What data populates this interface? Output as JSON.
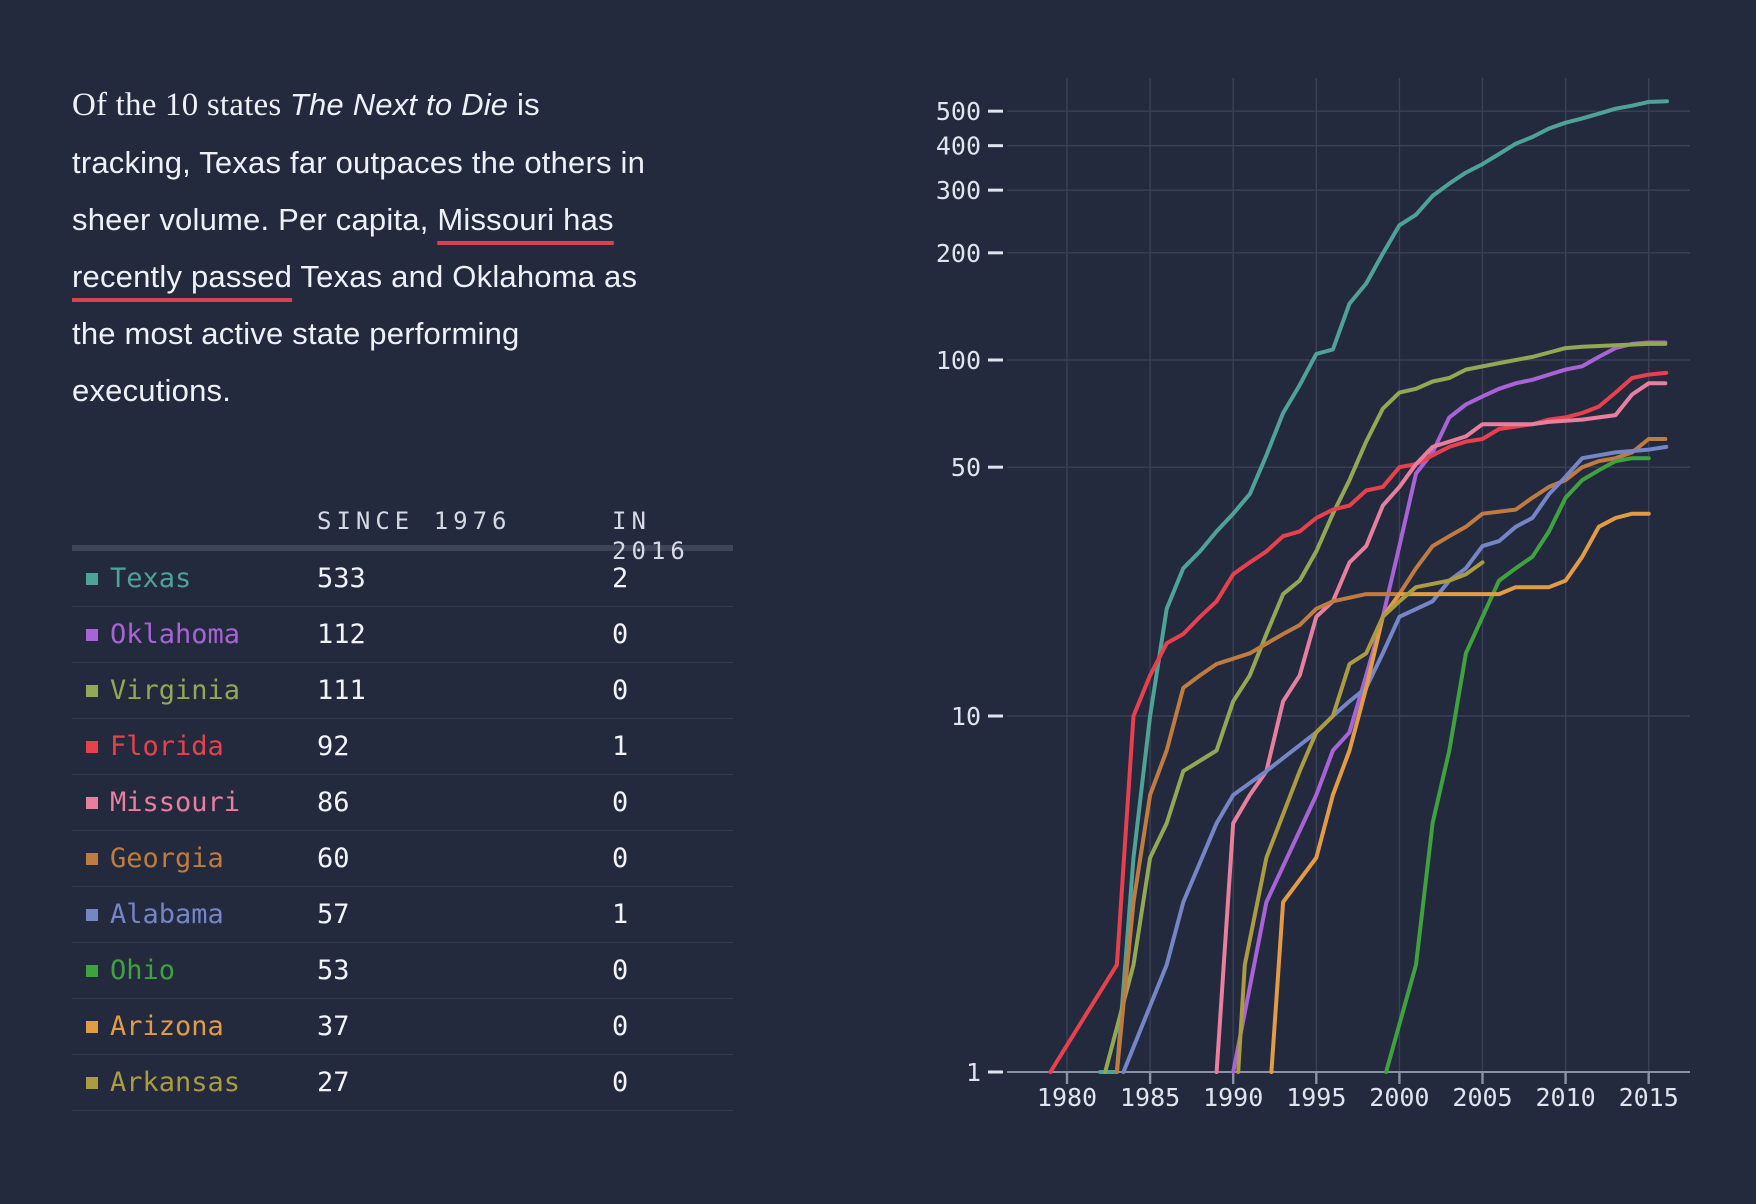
{
  "colors": {
    "background": "#232A3E",
    "text": "#EEF1F7",
    "link_underline": "#D8414E",
    "grid": "#3A4156",
    "axis": "#8A92A8",
    "tick_label": "#E0E4EE",
    "table_header_rule": "#3E4557",
    "table_row_border": "#333A4E"
  },
  "intro": {
    "lines": [
      {
        "segments": [
          {
            "text": "Of the 10 states ",
            "style": "serif"
          },
          {
            "text": "The Next to Die",
            "style": "italic"
          },
          {
            "text": " is",
            "style": "plain"
          }
        ]
      },
      {
        "segments": [
          {
            "text": "tracking, Texas far outpaces the others in",
            "style": "plain"
          }
        ]
      },
      {
        "segments": [
          {
            "text": "sheer volume. Per capita, ",
            "style": "plain"
          },
          {
            "text": "Missouri has",
            "style": "link"
          }
        ]
      },
      {
        "segments": [
          {
            "text": "recently passed",
            "style": "link"
          },
          {
            "text": " Texas and Oklahoma as",
            "style": "plain"
          }
        ]
      },
      {
        "segments": [
          {
            "text": "the most active state performing",
            "style": "plain"
          }
        ]
      },
      {
        "segments": [
          {
            "text": "executions.",
            "style": "plain"
          }
        ]
      }
    ]
  },
  "table": {
    "headers": [
      "SINCE 1976",
      "IN 2016"
    ],
    "rows": [
      {
        "state": "Texas",
        "color": "#4FA396",
        "since_1976": "533",
        "in_2016": "2"
      },
      {
        "state": "Oklahoma",
        "color": "#A863D6",
        "since_1976": "112",
        "in_2016": "0"
      },
      {
        "state": "Virginia",
        "color": "#93A853",
        "since_1976": "111",
        "in_2016": "0"
      },
      {
        "state": "Florida",
        "color": "#E8414D",
        "since_1976": "92",
        "in_2016": "1"
      },
      {
        "state": "Missouri",
        "color": "#E87F9F",
        "since_1976": "86",
        "in_2016": "0"
      },
      {
        "state": "Georgia",
        "color": "#C07B41",
        "since_1976": "60",
        "in_2016": "0"
      },
      {
        "state": "Alabama",
        "color": "#7585C6",
        "since_1976": "57",
        "in_2016": "1"
      },
      {
        "state": "Ohio",
        "color": "#3FA23F",
        "since_1976": "53",
        "in_2016": "0"
      },
      {
        "state": "Arizona",
        "color": "#E39C45",
        "since_1976": "37",
        "in_2016": "0"
      },
      {
        "state": "Arkansas",
        "color": "#AB9B41",
        "since_1976": "27",
        "in_2016": "0"
      }
    ]
  },
  "chart_data": {
    "type": "line",
    "title": "Cumulative executions since 1976, by state",
    "y_scale": "log",
    "x_ticks": [
      1980,
      1985,
      1990,
      1995,
      2000,
      2005,
      2010,
      2015
    ],
    "y_ticks": [
      1,
      10,
      50,
      100,
      200,
      300,
      400,
      500
    ],
    "x_domain": [
      1976.4,
      2017.5
    ],
    "y_domain": [
      1,
      620
    ],
    "grid": true,
    "legend_position": "none",
    "series": [
      {
        "name": "Texas",
        "color": "#4FA396",
        "points": [
          [
            1982,
            1
          ],
          [
            1983,
            1
          ],
          [
            1984,
            4
          ],
          [
            1985,
            10
          ],
          [
            1986,
            20
          ],
          [
            1987,
            26
          ],
          [
            1988,
            29
          ],
          [
            1989,
            33
          ],
          [
            1990,
            37
          ],
          [
            1991,
            42
          ],
          [
            1992,
            54
          ],
          [
            1993,
            71
          ],
          [
            1994,
            85
          ],
          [
            1995,
            104
          ],
          [
            1996,
            107
          ],
          [
            1997,
            144
          ],
          [
            1998,
            164
          ],
          [
            1999,
            199
          ],
          [
            2000,
            239
          ],
          [
            2001,
            256
          ],
          [
            2002,
            289
          ],
          [
            2003,
            313
          ],
          [
            2004,
            336
          ],
          [
            2005,
            355
          ],
          [
            2006,
            379
          ],
          [
            2007,
            405
          ],
          [
            2008,
            423
          ],
          [
            2009,
            447
          ],
          [
            2010,
            464
          ],
          [
            2011,
            477
          ],
          [
            2012,
            492
          ],
          [
            2013,
            508
          ],
          [
            2014,
            518
          ],
          [
            2015,
            531
          ],
          [
            2016.1,
            533
          ]
        ]
      },
      {
        "name": "Oklahoma",
        "color": "#A863D6",
        "points": [
          [
            1990,
            1
          ],
          [
            1992,
            3
          ],
          [
            1995,
            6
          ],
          [
            1996,
            8
          ],
          [
            1997,
            9
          ],
          [
            1998,
            13
          ],
          [
            1999,
            19
          ],
          [
            2000,
            30
          ],
          [
            2001,
            48
          ],
          [
            2002,
            55
          ],
          [
            2003,
            69
          ],
          [
            2004,
            75
          ],
          [
            2005,
            79
          ],
          [
            2006,
            83
          ],
          [
            2007,
            86
          ],
          [
            2008,
            88
          ],
          [
            2009,
            91
          ],
          [
            2010,
            94
          ],
          [
            2011,
            96
          ],
          [
            2012,
            102
          ],
          [
            2013,
            108
          ],
          [
            2014,
            111
          ],
          [
            2015,
            112
          ],
          [
            2016,
            112
          ]
        ]
      },
      {
        "name": "Virginia",
        "color": "#93A853",
        "points": [
          [
            1982.3,
            1
          ],
          [
            1984,
            2
          ],
          [
            1985,
            4
          ],
          [
            1986,
            5
          ],
          [
            1987,
            7
          ],
          [
            1989,
            8
          ],
          [
            1990,
            11
          ],
          [
            1991,
            13
          ],
          [
            1992,
            17
          ],
          [
            1993,
            22
          ],
          [
            1994,
            24
          ],
          [
            1995,
            29
          ],
          [
            1996,
            37
          ],
          [
            1997,
            46
          ],
          [
            1998,
            59
          ],
          [
            1999,
            73
          ],
          [
            2000,
            81
          ],
          [
            2001,
            83
          ],
          [
            2002,
            87
          ],
          [
            2003,
            89
          ],
          [
            2004,
            94
          ],
          [
            2006,
            98
          ],
          [
            2008,
            102
          ],
          [
            2009,
            105
          ],
          [
            2010,
            108
          ],
          [
            2011,
            109
          ],
          [
            2013,
            110
          ],
          [
            2015,
            111
          ],
          [
            2016,
            111
          ]
        ]
      },
      {
        "name": "Florida",
        "color": "#E8414D",
        "points": [
          [
            1979,
            1
          ],
          [
            1983,
            2
          ],
          [
            1984,
            10
          ],
          [
            1985,
            13
          ],
          [
            1986,
            16
          ],
          [
            1987,
            17
          ],
          [
            1988,
            19
          ],
          [
            1989,
            21
          ],
          [
            1990,
            25
          ],
          [
            1991,
            27
          ],
          [
            1992,
            29
          ],
          [
            1993,
            32
          ],
          [
            1994,
            33
          ],
          [
            1995,
            36
          ],
          [
            1996,
            38
          ],
          [
            1997,
            39
          ],
          [
            1998,
            43
          ],
          [
            1999,
            44
          ],
          [
            2000,
            50
          ],
          [
            2001,
            51
          ],
          [
            2002,
            54
          ],
          [
            2003,
            57
          ],
          [
            2004,
            59
          ],
          [
            2005,
            60
          ],
          [
            2006,
            64
          ],
          [
            2008,
            66
          ],
          [
            2009,
            68
          ],
          [
            2010,
            69
          ],
          [
            2011,
            71
          ],
          [
            2012,
            74
          ],
          [
            2013,
            81
          ],
          [
            2014,
            89
          ],
          [
            2015,
            91
          ],
          [
            2016.05,
            92
          ]
        ]
      },
      {
        "name": "Missouri",
        "color": "#E87F9F",
        "points": [
          [
            1989,
            1
          ],
          [
            1990,
            5
          ],
          [
            1991,
            6
          ],
          [
            1992,
            7
          ],
          [
            1993,
            11
          ],
          [
            1994,
            13
          ],
          [
            1995,
            19
          ],
          [
            1996,
            21
          ],
          [
            1997,
            27
          ],
          [
            1998,
            30
          ],
          [
            1999,
            39
          ],
          [
            2000,
            44
          ],
          [
            2001,
            51
          ],
          [
            2002,
            57
          ],
          [
            2003,
            59
          ],
          [
            2004,
            61
          ],
          [
            2005,
            66
          ],
          [
            2008,
            66
          ],
          [
            2009,
            67
          ],
          [
            2011,
            68
          ],
          [
            2013,
            70
          ],
          [
            2014,
            80
          ],
          [
            2015,
            86
          ],
          [
            2016,
            86
          ]
        ]
      },
      {
        "name": "Georgia",
        "color": "#C07B41",
        "points": [
          [
            1983,
            1
          ],
          [
            1984,
            3
          ],
          [
            1985,
            6
          ],
          [
            1986,
            8
          ],
          [
            1987,
            12
          ],
          [
            1988,
            13
          ],
          [
            1989,
            14
          ],
          [
            1991,
            15
          ],
          [
            1993,
            17
          ],
          [
            1994,
            18
          ],
          [
            1995,
            20
          ],
          [
            1996,
            21
          ],
          [
            1998,
            22
          ],
          [
            2000,
            22
          ],
          [
            2001,
            26
          ],
          [
            2002,
            30
          ],
          [
            2003,
            32
          ],
          [
            2004,
            34
          ],
          [
            2005,
            37
          ],
          [
            2007,
            38
          ],
          [
            2008,
            41
          ],
          [
            2009,
            44
          ],
          [
            2010,
            46
          ],
          [
            2011,
            50
          ],
          [
            2012,
            52
          ],
          [
            2013,
            53
          ],
          [
            2014,
            55
          ],
          [
            2015,
            60
          ],
          [
            2016,
            60
          ]
        ]
      },
      {
        "name": "Alabama",
        "color": "#7585C6",
        "points": [
          [
            1983.4,
            1
          ],
          [
            1986,
            2
          ],
          [
            1987,
            3
          ],
          [
            1989,
            5
          ],
          [
            1990,
            6
          ],
          [
            1992,
            7
          ],
          [
            1995,
            9
          ],
          [
            1996,
            10
          ],
          [
            1997,
            11
          ],
          [
            1998,
            12
          ],
          [
            1999,
            15
          ],
          [
            2000,
            19
          ],
          [
            2002,
            21
          ],
          [
            2003,
            24
          ],
          [
            2004,
            26
          ],
          [
            2005,
            30
          ],
          [
            2006,
            31
          ],
          [
            2007,
            34
          ],
          [
            2008,
            36
          ],
          [
            2009,
            42
          ],
          [
            2010,
            47
          ],
          [
            2011,
            53
          ],
          [
            2013,
            55
          ],
          [
            2015,
            56
          ],
          [
            2016.06,
            57
          ]
        ]
      },
      {
        "name": "Ohio",
        "color": "#3FA23F",
        "points": [
          [
            1999.2,
            1
          ],
          [
            2001,
            2
          ],
          [
            2002,
            5
          ],
          [
            2003,
            8
          ],
          [
            2004,
            15
          ],
          [
            2005,
            19
          ],
          [
            2006,
            24
          ],
          [
            2007,
            26
          ],
          [
            2008,
            28
          ],
          [
            2009,
            33
          ],
          [
            2010,
            41
          ],
          [
            2011,
            46
          ],
          [
            2012,
            49
          ],
          [
            2013,
            52
          ],
          [
            2014,
            53
          ],
          [
            2015,
            53
          ]
        ]
      },
      {
        "name": "Arizona",
        "color": "#E39C45",
        "points": [
          [
            1992.3,
            1
          ],
          [
            1993,
            3
          ],
          [
            1995,
            4
          ],
          [
            1996,
            6
          ],
          [
            1997,
            8
          ],
          [
            1998,
            12
          ],
          [
            1999,
            19
          ],
          [
            2000,
            22
          ],
          [
            2006,
            22
          ],
          [
            2007,
            23
          ],
          [
            2009,
            23
          ],
          [
            2010,
            24
          ],
          [
            2011,
            28
          ],
          [
            2012,
            34
          ],
          [
            2013,
            36
          ],
          [
            2014,
            37
          ],
          [
            2015,
            37
          ]
        ]
      },
      {
        "name": "Arkansas",
        "color": "#AB9B41",
        "points": [
          [
            1990.3,
            1
          ],
          [
            1990.7,
            2
          ],
          [
            1992,
            4
          ],
          [
            1994,
            7
          ],
          [
            1995,
            9
          ],
          [
            1996,
            10
          ],
          [
            1997,
            14
          ],
          [
            1998,
            15
          ],
          [
            1999,
            19
          ],
          [
            2000,
            21
          ],
          [
            2001,
            23
          ],
          [
            2003,
            24
          ],
          [
            2004,
            25
          ],
          [
            2005,
            27
          ]
        ]
      }
    ]
  }
}
